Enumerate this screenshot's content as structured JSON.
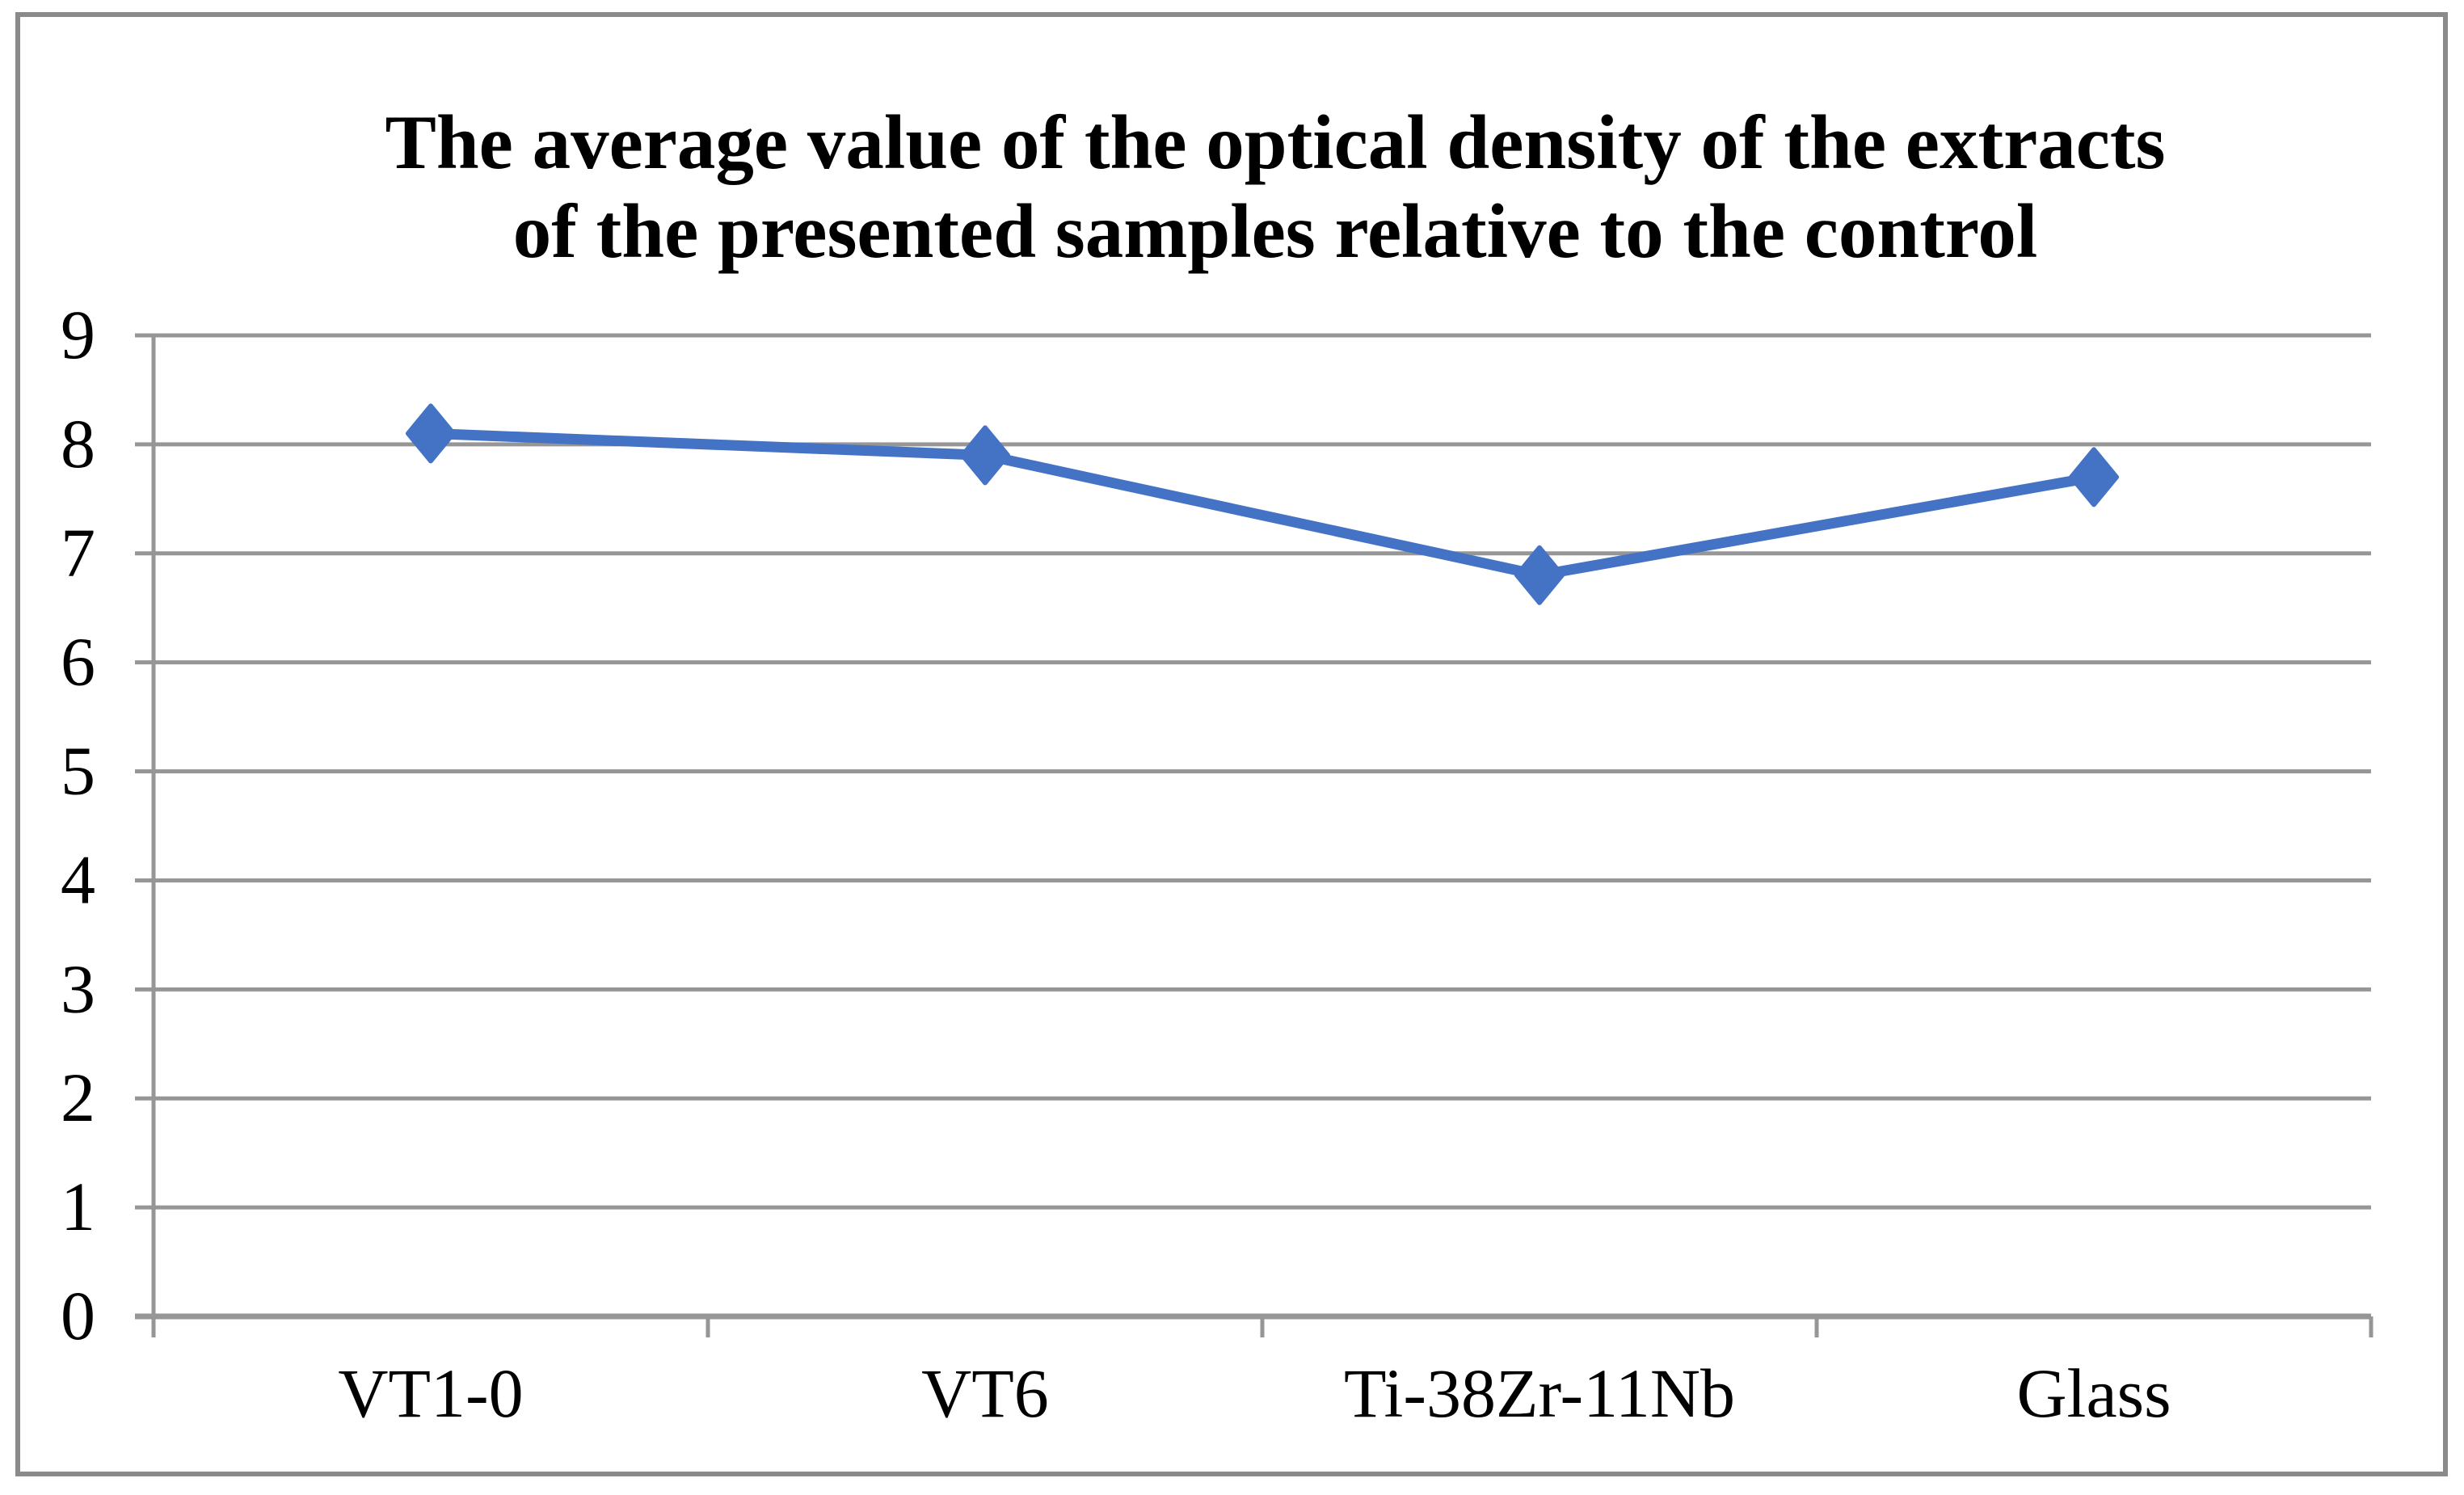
{
  "chart_data": {
    "type": "line",
    "title": "The average value of the optical density of the extracts of the presented samples relative to the control",
    "title_lines": [
      "The average value of the optical density of the extracts",
      "of the presented samples relative to the control"
    ],
    "categories": [
      "VT1-0",
      "VT6",
      "Ti-38Zr-11Nb",
      "Glass"
    ],
    "values": [
      8.1,
      7.9,
      6.8,
      7.7
    ],
    "ylim": [
      0,
      9
    ],
    "yticks": [
      0,
      1,
      2,
      3,
      4,
      5,
      6,
      7,
      8,
      9
    ],
    "ytick_step": 1,
    "xlabel": "",
    "ylabel": "",
    "grid": true,
    "legend_position": "none",
    "marker": "diamond",
    "colors": {
      "series_line": "#4472C4",
      "marker_fill": "#4472C4",
      "gridline": "#969696",
      "axis_line": "#969696",
      "outer_border": "#8A8A8A",
      "text": "#000000",
      "background": "#FFFFFF"
    }
  }
}
